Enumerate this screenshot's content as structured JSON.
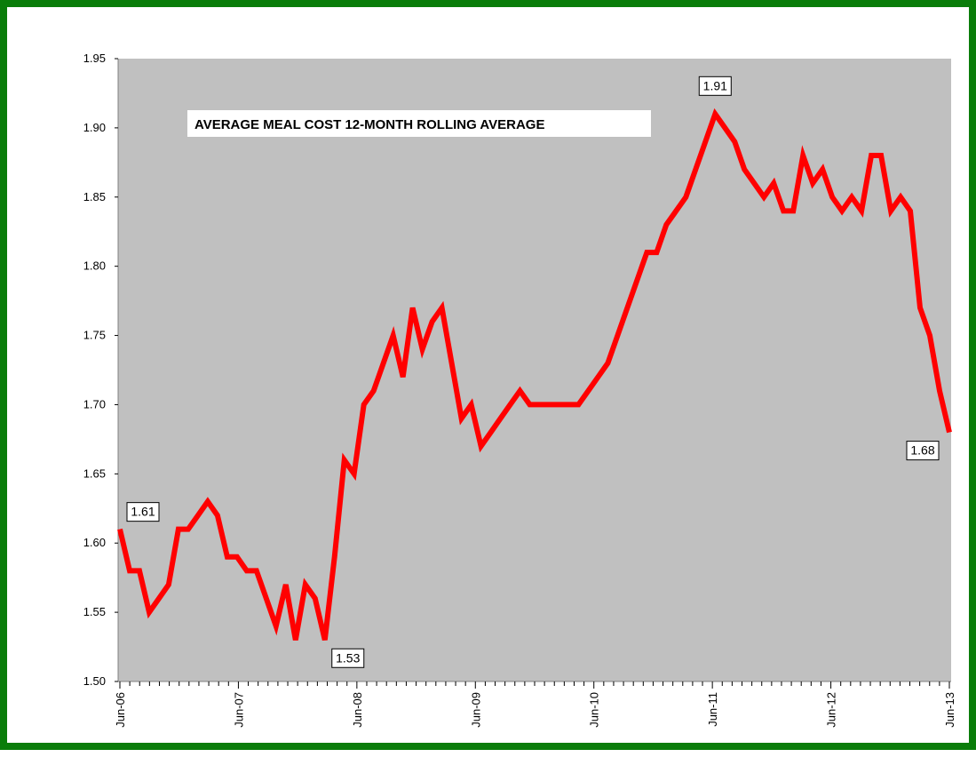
{
  "chart_data": {
    "type": "line",
    "title": "AVERAGE MEAL COST 12-MONTH ROLLING  AVERAGE",
    "xlabel": "",
    "ylabel": "",
    "ylim": [
      1.5,
      1.95
    ],
    "yticks": [
      "1.50",
      "1.55",
      "1.60",
      "1.65",
      "1.70",
      "1.75",
      "1.80",
      "1.85",
      "1.90",
      "1.95"
    ],
    "xtick_labels": [
      "Jun-06",
      "Jun-07",
      "Jun-08",
      "Jun-09",
      "Jun-10",
      "Jun-11",
      "Jun-12",
      "Jun-13"
    ],
    "x_start": "Jun-06",
    "x_end": "Jun-13",
    "grid": false,
    "legend": "none",
    "plot_background": "#c0c0c0",
    "frame_color": "#0a7d0a",
    "series": [
      {
        "color": "#ff0000",
        "values": [
          1.61,
          1.58,
          1.58,
          1.55,
          1.56,
          1.57,
          1.61,
          1.61,
          1.62,
          1.63,
          1.62,
          1.59,
          1.59,
          1.58,
          1.58,
          1.56,
          1.54,
          1.57,
          1.53,
          1.57,
          1.56,
          1.53,
          1.59,
          1.66,
          1.65,
          1.7,
          1.71,
          1.73,
          1.75,
          1.72,
          1.77,
          1.74,
          1.76,
          1.77,
          1.73,
          1.69,
          1.7,
          1.67,
          1.68,
          1.69,
          1.7,
          1.71,
          1.7,
          1.7,
          1.7,
          1.7,
          1.7,
          1.7,
          1.71,
          1.72,
          1.73,
          1.75,
          1.77,
          1.79,
          1.81,
          1.81,
          1.83,
          1.84,
          1.85,
          1.87,
          1.89,
          1.91,
          1.9,
          1.89,
          1.87,
          1.86,
          1.85,
          1.86,
          1.84,
          1.84,
          1.88,
          1.86,
          1.87,
          1.85,
          1.84,
          1.85,
          1.84,
          1.88,
          1.88,
          1.84,
          1.85,
          1.84,
          1.77,
          1.75,
          1.71,
          1.68
        ]
      }
    ],
    "annotations": [
      {
        "text": "1.61",
        "index": 0
      },
      {
        "text": "1.53",
        "index": 21
      },
      {
        "text": "1.91",
        "index": 61
      },
      {
        "text": "1.68",
        "index": 85
      }
    ]
  }
}
